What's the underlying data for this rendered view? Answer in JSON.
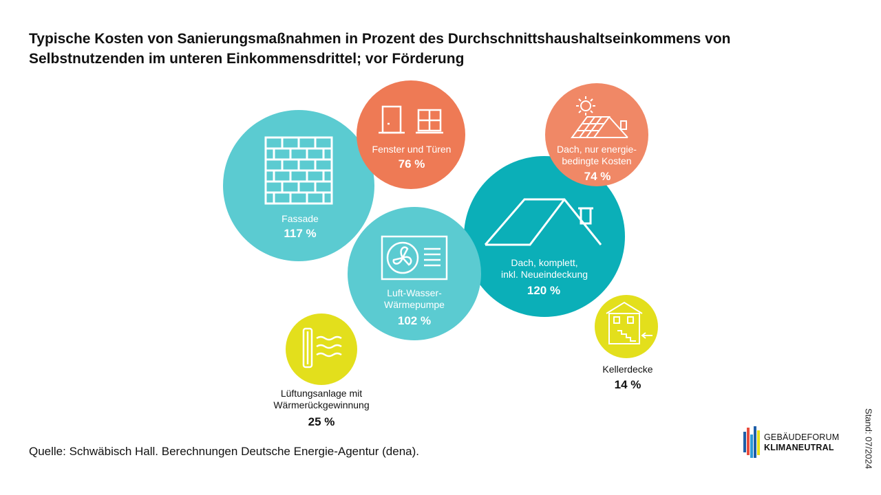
{
  "title": "Typische Kosten von Sanierungsmaßnahmen in Prozent des Durchschnittshaushaltseinkommens von Selbstnutzenden im unteren Einkommensdrittel; vor Förderung",
  "source": "Quelle: Schwäbisch Hall. Berechnungen Deutsche Energie-Agentur (dena).",
  "stand": "Stand: 07/2024",
  "logo": {
    "line1": "GEBÄUDEFORUM",
    "line2": "KLIMANEUTRAL"
  },
  "colors": {
    "teal": "#5BCBD1",
    "darkteal": "#0BAFB8",
    "orange": "#EE7A55",
    "salmon": "#F08866",
    "yellow": "#E3DF1C"
  },
  "chart_data": {
    "type": "bubble",
    "unit": "%",
    "series": [
      {
        "label": "Fassade",
        "value": 117,
        "value_label": "117 %",
        "color": "#5BCBD1",
        "icon": "brick-wall-icon"
      },
      {
        "label": "Fenster und Türen",
        "value": 76,
        "value_label": "76 %",
        "color": "#EE7A55",
        "icon": "door-window-icon"
      },
      {
        "label": "Dach, nur energie-bedingte Kosten",
        "value": 74,
        "value_label": "74 %",
        "color": "#F08866",
        "icon": "solar-roof-icon"
      },
      {
        "label": "Dach, komplett, inkl. Neueindeckung",
        "value": 120,
        "value_label": "120 %",
        "color": "#0BAFB8",
        "icon": "roof-icon"
      },
      {
        "label": "Luft-Wasser-Wärmepumpe",
        "value": 102,
        "value_label": "102 %",
        "color": "#5BCBD1",
        "icon": "heat-pump-icon"
      },
      {
        "label": "Lüftungsanlage mit Wärmerückgewinnung",
        "value": 25,
        "value_label": "25 %",
        "color": "#E3DF1C",
        "icon": "ventilation-icon"
      },
      {
        "label": "Kellerdecke",
        "value": 14,
        "value_label": "14 %",
        "color": "#E3DF1C",
        "icon": "basement-house-icon"
      }
    ]
  }
}
